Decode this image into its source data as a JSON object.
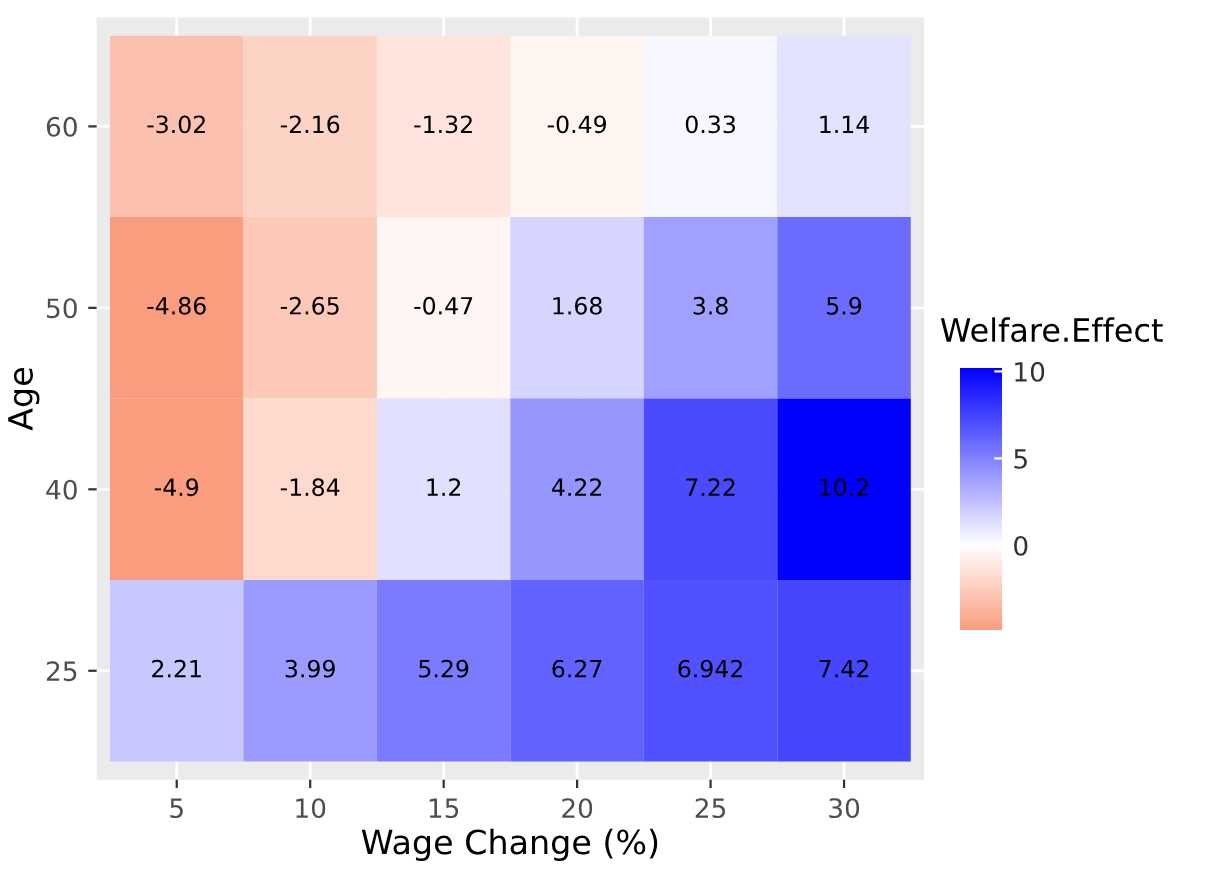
{
  "chart_data": {
    "type": "heatmap",
    "xlabel": "Wage Change (%)",
    "ylabel": "Age",
    "clabel": "Welfare.Effect",
    "categories": [
      "5",
      "10",
      "15",
      "20",
      "25",
      "30"
    ],
    "y_categories": [
      "60",
      "50",
      "40",
      "25"
    ],
    "cells": [
      [
        -3.02,
        -2.16,
        -1.32,
        -0.49,
        0.33,
        1.14
      ],
      [
        -4.86,
        -2.65,
        -0.47,
        1.68,
        3.8,
        5.9
      ],
      [
        -4.9,
        -1.84,
        1.2,
        4.22,
        7.22,
        10.2
      ],
      [
        2.21,
        3.99,
        5.29,
        6.27,
        6.942,
        7.42
      ]
    ],
    "clim": [
      -4.9,
      10.2
    ],
    "cticks": [
      0,
      5,
      10
    ],
    "colors": [
      "#fa9c7e",
      "#ffffff",
      "#0000ff"
    ],
    "data_labels": true,
    "grid": true
  }
}
